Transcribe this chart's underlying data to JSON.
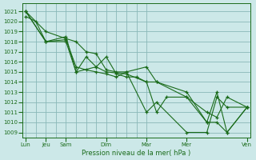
{
  "xlabel": "Pression niveau de la mer( hPa )",
  "bg_color": "#cce8e8",
  "grid_color": "#8ab8b8",
  "line_color": "#1a6b1a",
  "ylim": [
    1008.5,
    1021.8
  ],
  "yticks": [
    1009,
    1010,
    1011,
    1012,
    1013,
    1014,
    1015,
    1016,
    1017,
    1018,
    1019,
    1020,
    1021
  ],
  "xlim": [
    -0.15,
    11.15
  ],
  "x_tick_positions": [
    0,
    1,
    2,
    4,
    6,
    8,
    11
  ],
  "x_tick_labels": [
    "Lun",
    "Jeu",
    "Sam",
    "Dim",
    "Mar",
    "Mer",
    "Ven"
  ],
  "vline_positions": [
    0,
    1,
    2,
    4,
    6,
    8,
    11
  ],
  "series": [
    {
      "x": [
        0,
        1,
        2,
        2.5,
        3,
        3.5,
        4,
        4.5,
        5,
        6,
        6.5,
        8,
        9,
        9.5,
        10,
        11
      ],
      "y": [
        1021.0,
        1019.0,
        1018.3,
        1018.0,
        1017.0,
        1016.8,
        1015.2,
        1015.0,
        1015.0,
        1015.5,
        1014.0,
        1012.5,
        1011.0,
        1010.5,
        1012.5,
        1011.5
      ]
    },
    {
      "x": [
        0,
        0.5,
        1,
        2,
        2.5,
        3,
        3.5,
        4,
        4.5,
        5,
        6,
        6.5,
        8,
        9,
        9.5,
        10,
        11
      ],
      "y": [
        1020.5,
        1020.0,
        1018.0,
        1018.2,
        1015.5,
        1015.2,
        1015.0,
        1014.8,
        1014.5,
        1015.0,
        1011.0,
        1012.0,
        1009.0,
        1009.0,
        1012.5,
        1011.5,
        1011.5
      ]
    },
    {
      "x": [
        0,
        1,
        2,
        2.5,
        3.5,
        4,
        4.5,
        5,
        5.5,
        6,
        6.5,
        8,
        9,
        9.5,
        10,
        11
      ],
      "y": [
        1021.0,
        1018.0,
        1018.5,
        1015.0,
        1015.5,
        1016.5,
        1014.8,
        1014.5,
        1014.5,
        1014.0,
        1014.0,
        1013.0,
        1010.0,
        1013.0,
        1009.0,
        1011.5
      ]
    },
    {
      "x": [
        0,
        1,
        2,
        2.5,
        3,
        3.5,
        4,
        5,
        6,
        6.5,
        7,
        8,
        9,
        9.5,
        10,
        11
      ],
      "y": [
        1021.0,
        1018.0,
        1018.0,
        1015.0,
        1016.5,
        1015.5,
        1015.0,
        1014.8,
        1014.0,
        1011.0,
        1012.5,
        1012.5,
        1010.0,
        1010.0,
        1009.0,
        1011.5
      ]
    }
  ]
}
